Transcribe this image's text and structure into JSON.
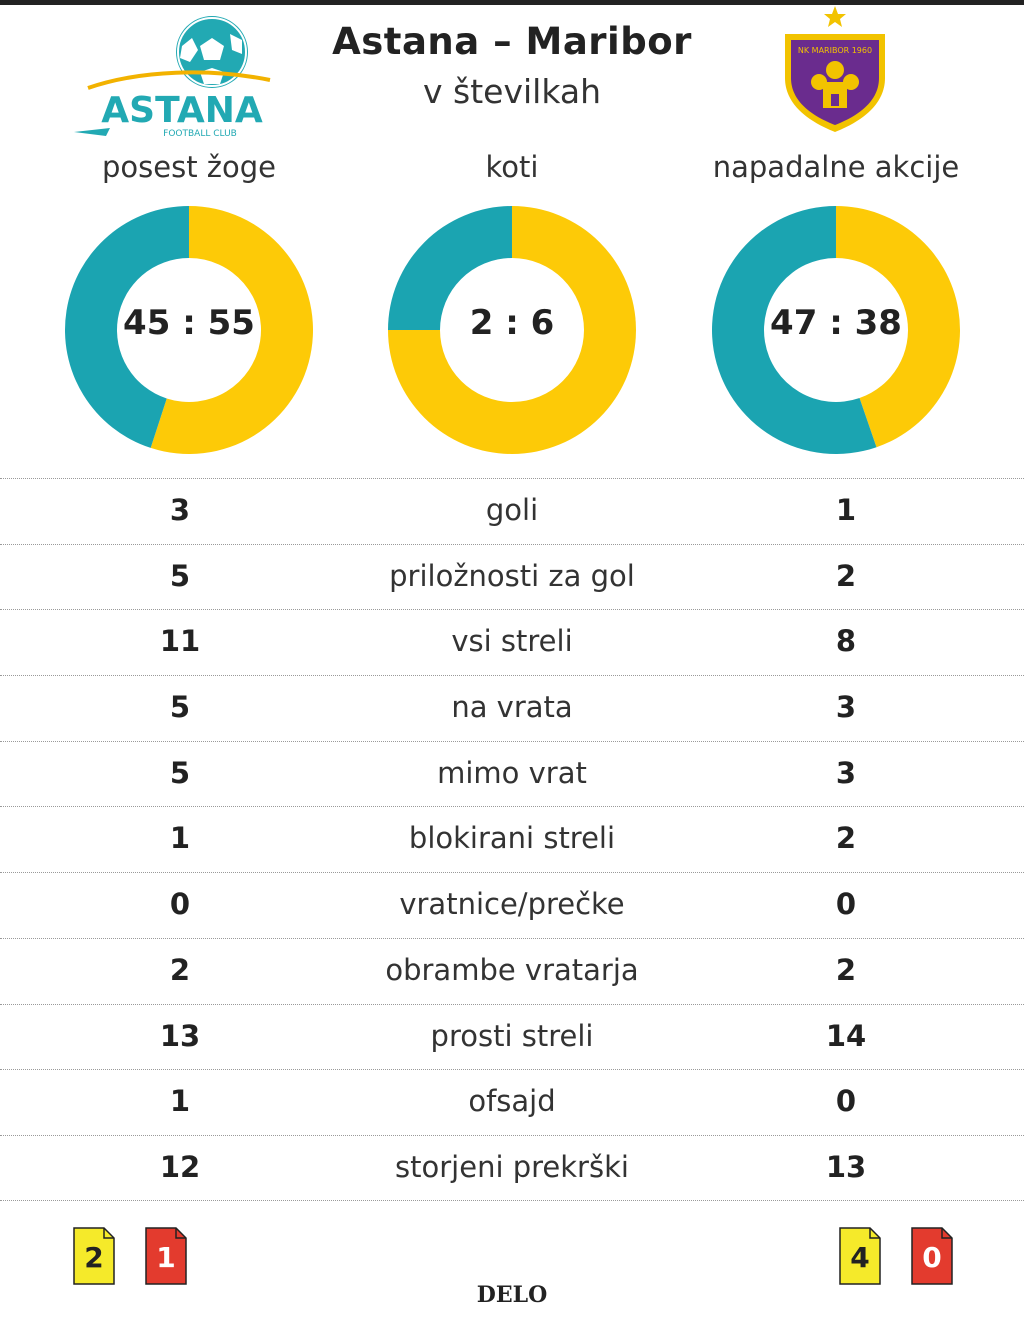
{
  "header": {
    "title": "Astana – Maribor",
    "subtitle": "v številkah"
  },
  "logos": {
    "astana": {
      "name": "ASTANA",
      "sub": "FOOTBALL CLUB"
    },
    "maribor": {
      "ring_text": "NK MARIBOR 1960"
    }
  },
  "colors": {
    "home": "#1ba4b1",
    "away": "#fdca07",
    "yellow_card": "#f5ea2a",
    "red_card": "#e33b2e"
  },
  "chart_data": [
    {
      "type": "pie",
      "title": "posest žoge",
      "score_label": "45 : 55",
      "series": [
        {
          "name": "Astana",
          "value": 45
        },
        {
          "name": "Maribor",
          "value": 55
        }
      ]
    },
    {
      "type": "pie",
      "title": "koti",
      "score_label": "2 : 6",
      "series": [
        {
          "name": "Astana",
          "value": 2
        },
        {
          "name": "Maribor",
          "value": 6
        }
      ]
    },
    {
      "type": "pie",
      "title": "napadalne akcije",
      "score_label": "47 : 38",
      "series": [
        {
          "name": "Astana",
          "value": 47
        },
        {
          "name": "Maribor",
          "value": 38
        }
      ]
    },
    {
      "type": "table",
      "columns": [
        "Astana",
        "",
        "Maribor"
      ],
      "rows": [
        {
          "home": "3",
          "label": "goli",
          "away": "1"
        },
        {
          "home": "5",
          "label": "priložnosti za gol",
          "away": "2"
        },
        {
          "home": "11",
          "label": "vsi streli",
          "away": "8"
        },
        {
          "home": "5",
          "label": "na vrata",
          "away": "3"
        },
        {
          "home": "5",
          "label": "mimo vrat",
          "away": "3"
        },
        {
          "home": "1",
          "label": "blokirani streli",
          "away": "2"
        },
        {
          "home": "0",
          "label": "vratnice/prečke",
          "away": "0"
        },
        {
          "home": "2",
          "label": "obrambe vratarja",
          "away": "2"
        },
        {
          "home": "13",
          "label": "prosti streli",
          "away": "14"
        },
        {
          "home": "1",
          "label": "ofsajd",
          "away": "0"
        },
        {
          "home": "12",
          "label": "storjeni prekrški",
          "away": "13"
        }
      ]
    }
  ],
  "cards": {
    "home": {
      "yellow": "2",
      "red": "1"
    },
    "away": {
      "yellow": "4",
      "red": "0"
    }
  },
  "source": "DELO"
}
